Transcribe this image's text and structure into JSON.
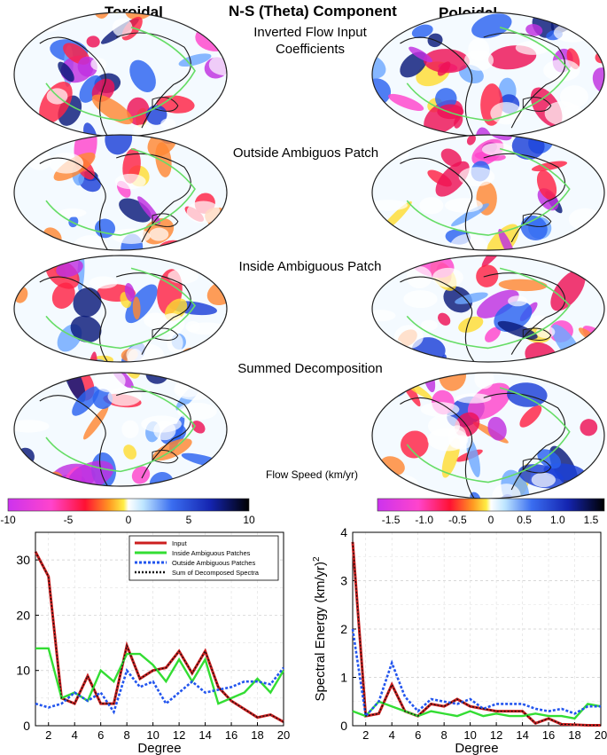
{
  "header": {
    "left": "Toroidal",
    "center": "N-S (Theta) Component",
    "right": "Poloidal"
  },
  "map_rows": [
    {
      "label_line1": "Inverted Flow  Input",
      "label_line2": "Coefficients"
    },
    {
      "label_line1": "Outside Ambiguos Patch",
      "label_line2": ""
    },
    {
      "label_line1": "Inside Ambiguous Patch",
      "label_line2": ""
    },
    {
      "label_line1": "Summed Decomposition",
      "label_line2": ""
    }
  ],
  "colorbar_title": "Flow Speed (km/yr)",
  "colorbars": [
    {
      "ticks": [
        "-10",
        "-5",
        "0",
        "5",
        "10"
      ],
      "values": [
        -10,
        -5,
        0,
        5,
        10
      ],
      "range": [
        -10,
        10
      ]
    },
    {
      "ticks": [
        "-1.5",
        "-1.0",
        "-0.5",
        "0",
        "0.5",
        "1.0",
        "1.5"
      ],
      "values": [
        -1.5,
        -1.0,
        -0.5,
        0,
        0.5,
        1.0,
        1.5
      ],
      "range": [
        -1.7,
        1.7
      ]
    }
  ],
  "colors": {
    "input": "#cc1f1f",
    "inside": "#33dd33",
    "outside": "#2255ee",
    "sum": "#111111",
    "coast": "#1a1a1a",
    "contour": "#66dd66"
  },
  "chart_data": [
    {
      "type": "line",
      "title": "",
      "xlabel": "Degree",
      "ylabel": "",
      "xlim": [
        1,
        20
      ],
      "ylim": [
        0,
        35
      ],
      "x_ticks": [
        2,
        4,
        6,
        8,
        10,
        12,
        14,
        16,
        18,
        20
      ],
      "y_ticks": [
        0,
        10,
        20,
        30
      ],
      "legend": [
        "Input",
        "Inside Ambiguous Patches",
        "Outside Ambiguous Patches",
        "Sum of Decomposed Spectra"
      ],
      "x": [
        1,
        2,
        3,
        4,
        5,
        6,
        7,
        8,
        9,
        10,
        11,
        12,
        13,
        14,
        15,
        16,
        17,
        18,
        19,
        20
      ],
      "series": [
        {
          "name": "Input",
          "values": [
            31.5,
            27,
            5,
            4,
            9,
            4,
            4,
            14.5,
            8.5,
            10,
            10.5,
            13.5,
            9.5,
            13.5,
            7,
            4.5,
            3,
            1.5,
            2,
            0.7
          ]
        },
        {
          "name": "Inside Ambiguous Patches",
          "values": [
            14,
            14,
            5,
            6,
            4.5,
            10,
            8,
            13,
            13,
            11,
            8,
            12,
            8,
            12,
            4,
            5,
            6,
            8.5,
            6,
            10
          ]
        },
        {
          "name": "Outside Ambiguous Patches",
          "values": [
            4,
            3.3,
            4,
            6,
            4.5,
            6,
            2.5,
            10,
            7,
            8,
            4,
            6,
            8,
            6,
            6.5,
            7,
            8,
            8,
            7.5,
            10.5
          ]
        },
        {
          "name": "Sum of Decomposed Spectra",
          "values": [
            31.5,
            27,
            5,
            4,
            9,
            4,
            4,
            14.5,
            8.5,
            10,
            10.5,
            13.5,
            9.5,
            13.5,
            7,
            4.5,
            3,
            1.5,
            2,
            0.7
          ]
        }
      ]
    },
    {
      "type": "line",
      "title": "",
      "xlabel": "Degree",
      "ylabel": "Spectral Energy  (km/yr)",
      "ylabel_sup": "2",
      "xlim": [
        1,
        20
      ],
      "ylim": [
        0,
        4
      ],
      "x_ticks": [
        2,
        4,
        6,
        8,
        10,
        12,
        14,
        16,
        18,
        20
      ],
      "y_ticks": [
        0,
        1,
        2,
        3,
        4
      ],
      "x": [
        1,
        2,
        3,
        4,
        5,
        6,
        7,
        8,
        9,
        10,
        11,
        12,
        13,
        14,
        15,
        16,
        17,
        18,
        19,
        20
      ],
      "series": [
        {
          "name": "Input",
          "values": [
            3.8,
            0.2,
            0.25,
            0.85,
            0.3,
            0.2,
            0.45,
            0.4,
            0.55,
            0.4,
            0.35,
            0.3,
            0.3,
            0.3,
            0.05,
            0.15,
            0.03,
            0.02,
            0.01,
            0.01
          ]
        },
        {
          "name": "Inside Ambiguous Patches",
          "values": [
            0.3,
            0.2,
            0.5,
            0.4,
            0.3,
            0.2,
            0.3,
            0.25,
            0.2,
            0.3,
            0.2,
            0.25,
            0.2,
            0.2,
            0.25,
            0.2,
            0.2,
            0.15,
            0.45,
            0.4
          ]
        },
        {
          "name": "Outside Ambiguous Patches",
          "values": [
            2,
            0.2,
            0.5,
            1.3,
            0.6,
            0.3,
            0.55,
            0.5,
            0.45,
            0.55,
            0.35,
            0.45,
            0.45,
            0.45,
            0.35,
            0.3,
            0.35,
            0.25,
            0.4,
            0.4
          ]
        },
        {
          "name": "Sum of Decomposed Spectra",
          "values": [
            3.8,
            0.2,
            0.25,
            0.85,
            0.3,
            0.2,
            0.45,
            0.4,
            0.55,
            0.4,
            0.35,
            0.3,
            0.3,
            0.3,
            0.05,
            0.15,
            0.03,
            0.02,
            0.01,
            0.01
          ]
        }
      ]
    }
  ]
}
